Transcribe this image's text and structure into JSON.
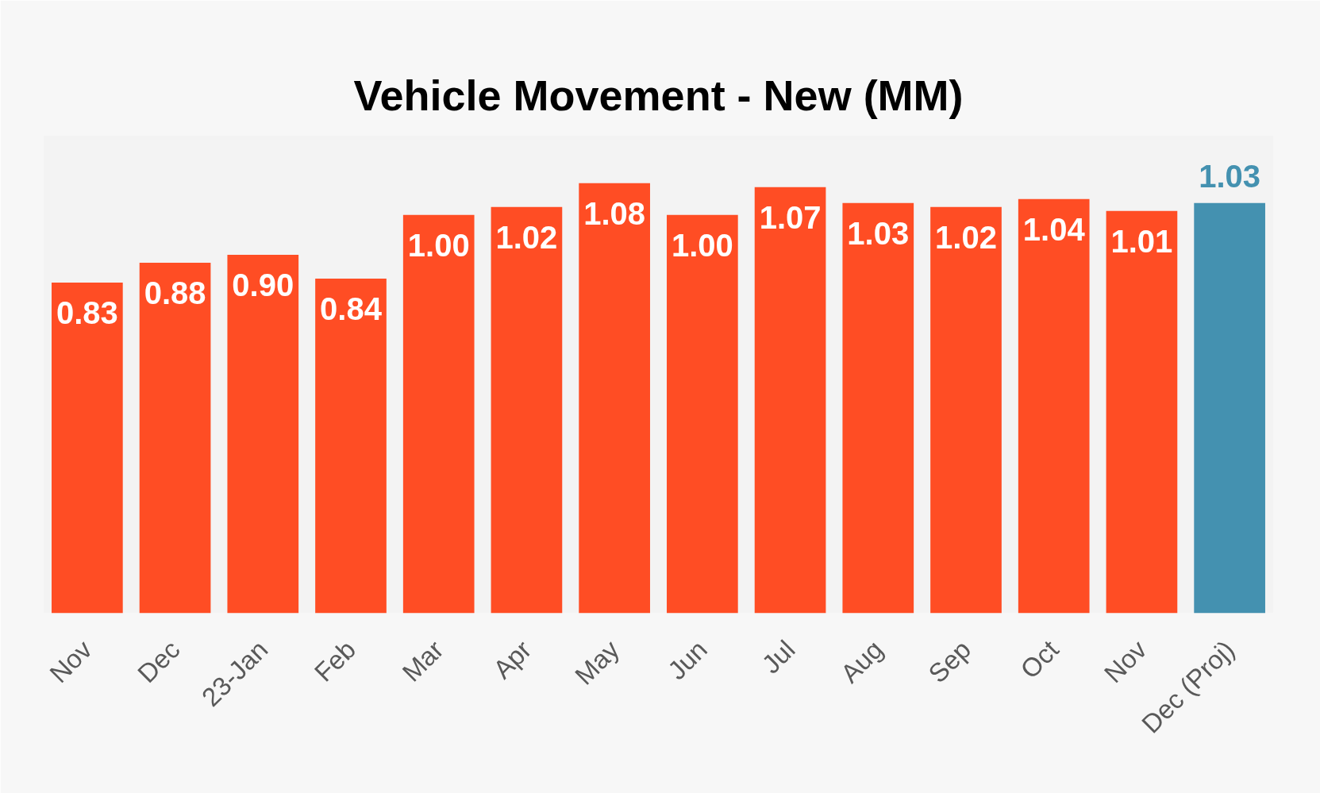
{
  "chart_data": {
    "type": "bar",
    "title": "Vehicle Movement - New (MM)",
    "categories": [
      "Nov",
      "Dec",
      "23-Jan",
      "Feb",
      "Mar",
      "Apr",
      "May",
      "Jun",
      "Jul",
      "Aug",
      "Sep",
      "Oct",
      "Nov",
      "Dec (Proj)"
    ],
    "series": [
      {
        "color": "#ff4d24",
        "values": [
          0.83,
          0.88,
          0.9,
          0.84,
          1.0,
          1.02,
          1.08,
          1.0,
          1.07,
          1.03,
          1.02,
          1.04,
          1.01,
          null
        ],
        "value_labels": [
          "0.83",
          "0.88",
          "0.90",
          "0.84",
          "1.00",
          "1.02",
          "1.08",
          "1.00",
          "1.07",
          "1.03",
          "1.02",
          "1.04",
          "1.01",
          null
        ]
      },
      {
        "color": "#4491b0",
        "values": [
          null,
          null,
          null,
          null,
          null,
          null,
          null,
          null,
          null,
          null,
          null,
          null,
          null,
          1.03
        ],
        "value_labels": [
          null,
          null,
          null,
          null,
          null,
          null,
          null,
          null,
          null,
          null,
          null,
          null,
          null,
          "1.03"
        ]
      }
    ],
    "stacked": true,
    "ylim": [
      0,
      1.2
    ],
    "tick_labels": "x",
    "grid": false
  }
}
